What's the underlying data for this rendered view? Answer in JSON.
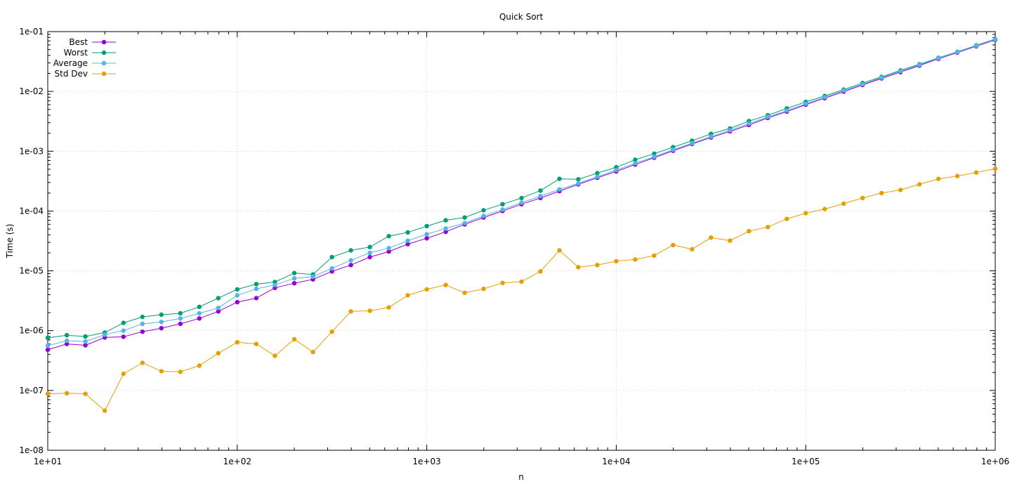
{
  "chart_data": {
    "type": "line",
    "title": "Quick Sort",
    "xlabel": "n",
    "ylabel": "Time (s)",
    "x_scale": "log",
    "y_scale": "log",
    "xlim": [
      10,
      1000000
    ],
    "ylim": [
      1e-08,
      0.1
    ],
    "grid": true,
    "legend_position": "top-left",
    "x_ticks": [
      10,
      100,
      1000,
      10000,
      100000,
      1000000
    ],
    "x_tick_labels": [
      "1e+01",
      "1e+02",
      "1e+03",
      "1e+04",
      "1e+05",
      "1e+06"
    ],
    "y_ticks": [
      1e-08,
      1e-07,
      1e-06,
      1e-05,
      0.0001,
      0.001,
      0.01,
      0.1
    ],
    "y_tick_labels": [
      "1e-08",
      "1e-07",
      "1e-06",
      "1e-05",
      "1e-04",
      "1e-03",
      "1e-02",
      "1e-01"
    ],
    "x": [
      10,
      12.6,
      15.8,
      20,
      25.1,
      31.6,
      39.8,
      50.1,
      63.1,
      79.4,
      100,
      126,
      158,
      200,
      251,
      316,
      398,
      501,
      631,
      794,
      1000,
      1259,
      1585,
      1995,
      2512,
      3162,
      3981,
      5012,
      6310,
      7943,
      10000,
      12589,
      15849,
      19953,
      25119,
      31623,
      39811,
      50119,
      63096,
      79433,
      100000,
      125893,
      158489,
      199526,
      251189,
      316228,
      398107,
      501187,
      630957,
      794328,
      1000000
    ],
    "series": [
      {
        "name": "Best",
        "color": "#9400d3",
        "values": [
          4.8e-07,
          6e-07,
          5.7e-07,
          7.7e-07,
          7.9e-07,
          9.6e-07,
          1.1e-06,
          1.3e-06,
          1.6e-06,
          2.1e-06,
          3e-06,
          3.5e-06,
          5.2e-06,
          6.2e-06,
          7.2e-06,
          9.8e-06,
          1.25e-05,
          1.7e-05,
          2.1e-05,
          2.8e-05,
          3.5e-05,
          4.5e-05,
          6e-05,
          7.8e-05,
          0.0001,
          0.00013,
          0.000165,
          0.000215,
          0.00028,
          0.00036,
          0.00046,
          0.0006,
          0.00078,
          0.00102,
          0.00132,
          0.0017,
          0.00215,
          0.00275,
          0.0036,
          0.0046,
          0.006,
          0.0077,
          0.0099,
          0.0128,
          0.0165,
          0.021,
          0.027,
          0.035,
          0.0445,
          0.057,
          0.073
        ]
      },
      {
        "name": "Worst",
        "color": "#009e73",
        "values": [
          7.6e-07,
          8.4e-07,
          8e-07,
          9.3e-07,
          1.35e-06,
          1.7e-06,
          1.85e-06,
          1.95e-06,
          2.5e-06,
          3.5e-06,
          4.9e-06,
          6e-06,
          6.5e-06,
          9.2e-06,
          8.7e-06,
          1.7e-05,
          2.2e-05,
          2.5e-05,
          3.8e-05,
          4.4e-05,
          5.6e-05,
          7e-05,
          7.8e-05,
          0.000103,
          0.00013,
          0.000165,
          0.00022,
          0.000345,
          0.00034,
          0.00043,
          0.00054,
          0.00072,
          0.00091,
          0.00117,
          0.0015,
          0.00195,
          0.0024,
          0.0032,
          0.004,
          0.0052,
          0.0067,
          0.0084,
          0.0107,
          0.0138,
          0.0175,
          0.0225,
          0.0285,
          0.0365,
          0.046,
          0.059,
          0.075
        ]
      },
      {
        "name": "Average",
        "color": "#56b4e9",
        "values": [
          5.6e-07,
          6.8e-07,
          6.6e-07,
          8.6e-07,
          1e-06,
          1.3e-06,
          1.4e-06,
          1.6e-06,
          1.95e-06,
          2.4e-06,
          3.9e-06,
          5e-06,
          5.8e-06,
          7.5e-06,
          8e-06,
          1.1e-05,
          1.5e-05,
          2e-05,
          2.4e-05,
          3.2e-05,
          4.1e-05,
          5.1e-05,
          6.3e-05,
          8.3e-05,
          0.000106,
          0.000138,
          0.000178,
          0.00023,
          0.00029,
          0.000375,
          0.000485,
          0.00063,
          0.00081,
          0.00106,
          0.00136,
          0.00176,
          0.00225,
          0.0029,
          0.00375,
          0.0048,
          0.00625,
          0.008,
          0.0103,
          0.0132,
          0.017,
          0.0218,
          0.0278,
          0.0358,
          0.0455,
          0.0582,
          0.0745
        ]
      },
      {
        "name": "Std Dev",
        "color": "#e69f00",
        "values": [
          8.8e-08,
          9e-08,
          8.8e-08,
          4.6e-08,
          1.9e-07,
          2.9e-07,
          2.1e-07,
          2.05e-07,
          2.6e-07,
          4.2e-07,
          6.4e-07,
          6e-07,
          3.8e-07,
          7.2e-07,
          4.4e-07,
          9.6e-07,
          2.1e-06,
          2.15e-06,
          2.45e-06,
          3.9e-06,
          4.9e-06,
          5.8e-06,
          4.3e-06,
          5e-06,
          6.3e-06,
          6.6e-06,
          9.8e-06,
          2.2e-05,
          1.15e-05,
          1.25e-05,
          1.45e-05,
          1.55e-05,
          1.8e-05,
          2.7e-05,
          2.3e-05,
          3.6e-05,
          3.2e-05,
          4.6e-05,
          5.4e-05,
          7.4e-05,
          9.2e-05,
          0.000108,
          0.000133,
          0.000165,
          0.0002,
          0.000225,
          0.00028,
          0.000345,
          0.000385,
          0.00044,
          0.00051
        ]
      }
    ]
  }
}
